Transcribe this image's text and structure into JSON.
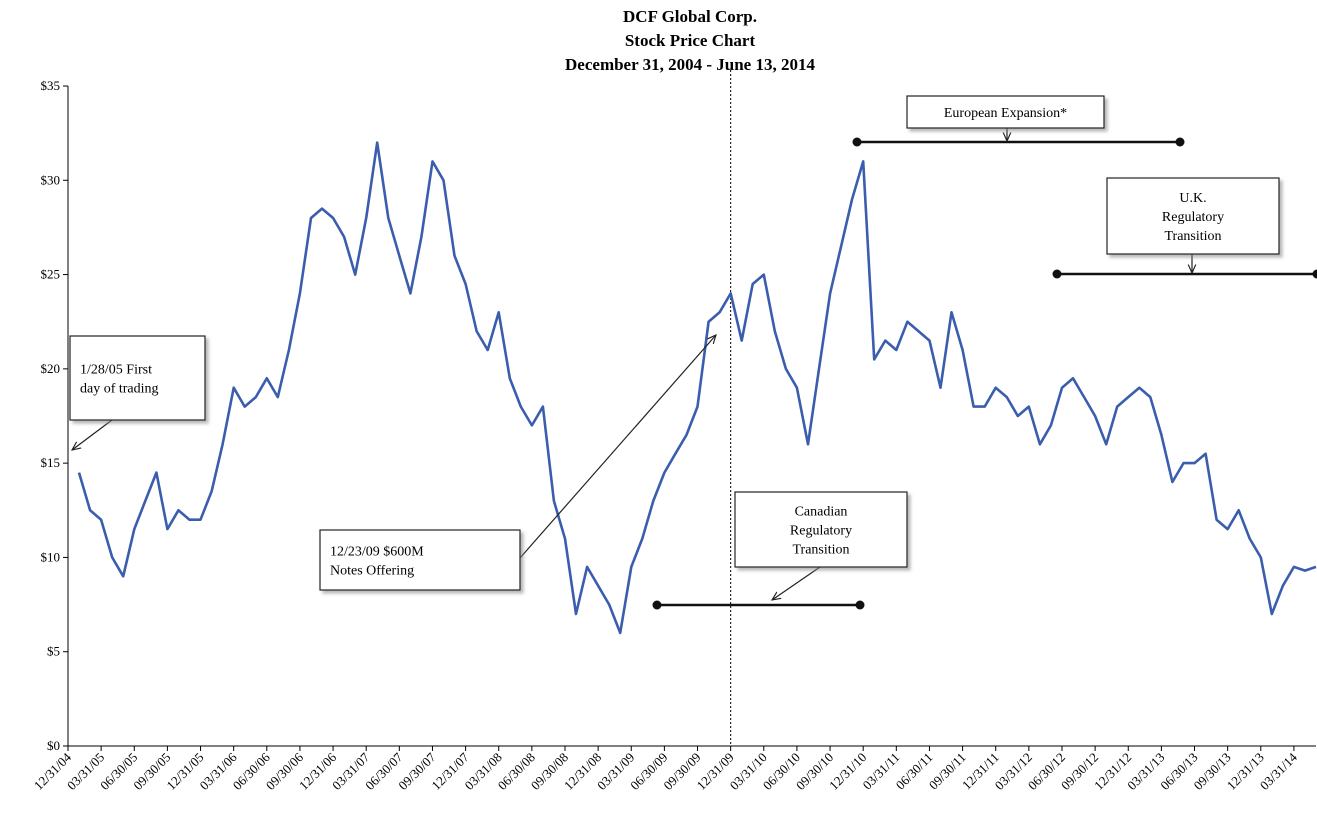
{
  "chart_data": {
    "type": "line",
    "title": [
      "DCF Global Corp.",
      "Stock Price Chart",
      "December 31, 2004 - June 13, 2014"
    ],
    "categories": [
      "12/31/04",
      null,
      null,
      "03/31/05",
      null,
      null,
      "06/30/05",
      null,
      null,
      "09/30/05",
      null,
      null,
      "12/31/05",
      null,
      null,
      "03/31/06",
      null,
      null,
      "06/30/06",
      null,
      null,
      "09/30/06",
      null,
      null,
      "12/31/06",
      null,
      null,
      "03/31/07",
      null,
      null,
      "06/30/07",
      null,
      null,
      "09/30/07",
      null,
      null,
      "12/31/07",
      null,
      null,
      "03/31/08",
      null,
      null,
      "06/30/08",
      null,
      null,
      "09/30/08",
      null,
      null,
      "12/31/08",
      null,
      null,
      "03/31/09",
      null,
      null,
      "06/30/09",
      null,
      null,
      "09/30/09",
      null,
      null,
      "12/31/09",
      null,
      null,
      "03/31/10",
      null,
      null,
      "06/30/10",
      null,
      null,
      "09/30/10",
      null,
      null,
      "12/31/10",
      null,
      null,
      "03/31/11",
      null,
      null,
      "06/30/11",
      null,
      null,
      "09/30/11",
      null,
      null,
      "12/31/11",
      null,
      null,
      "03/31/12",
      null,
      null,
      "06/30/12",
      null,
      null,
      "09/30/12",
      null,
      null,
      "12/31/12",
      null,
      null,
      "03/31/13",
      null,
      null,
      "06/30/13",
      null,
      null,
      "09/30/13",
      null,
      null,
      "12/31/13",
      null,
      null,
      "03/31/14",
      null,
      null
    ],
    "series": [
      {
        "name": "Stock Price",
        "color": "#3a5dae",
        "values": [
          null,
          14.5,
          12.5,
          12,
          10,
          9,
          11.5,
          13,
          14.5,
          11.5,
          12.5,
          12,
          12,
          13.5,
          16,
          19,
          18,
          18.5,
          19.5,
          18.5,
          21,
          24,
          28,
          28.5,
          28,
          27,
          25,
          28,
          32,
          28,
          26,
          24,
          27,
          31,
          30,
          26,
          24.5,
          22,
          21,
          23,
          19.5,
          18,
          17,
          18,
          13,
          11,
          7,
          9.5,
          8.5,
          7.5,
          6,
          9.5,
          11,
          13,
          14.5,
          15.5,
          16.5,
          18,
          22.5,
          23,
          24,
          21.5,
          24.5,
          25,
          22,
          20,
          19,
          16,
          20,
          24,
          26.5,
          29,
          31,
          20.5,
          21.5,
          21,
          22.5,
          22,
          21.5,
          19,
          23,
          21,
          18,
          18,
          19,
          18.5,
          17.5,
          18,
          16,
          17,
          19,
          19.5,
          18.5,
          17.5,
          16,
          18,
          18.5,
          19,
          18.5,
          16.5,
          14,
          15,
          15,
          15.5,
          12,
          11.5,
          12.5,
          11,
          10,
          7,
          8.5,
          9.5,
          9.3,
          9.5
        ]
      }
    ],
    "ylim": [
      0,
      35
    ],
    "yticks": [
      {
        "value": 0,
        "label": "$0"
      },
      {
        "value": 5,
        "label": "$5"
      },
      {
        "value": 10,
        "label": "$10"
      },
      {
        "value": 15,
        "label": "$15"
      },
      {
        "value": 20,
        "label": "$20"
      },
      {
        "value": 25,
        "label": "$25"
      },
      {
        "value": 30,
        "label": "$30"
      },
      {
        "value": 35,
        "label": "$35"
      }
    ],
    "grid": false,
    "annotations": [
      {
        "lines": [
          "1/28/05 First",
          "day of trading"
        ]
      },
      {
        "lines": [
          "12/23/09 $600M",
          "Notes Offering"
        ]
      },
      {
        "lines": [
          "Canadian",
          "Regulatory",
          "Transition"
        ]
      },
      {
        "lines": [
          "European Expansion*"
        ]
      },
      {
        "lines": [
          "U.K.",
          "Regulatory",
          "Transition"
        ]
      }
    ]
  }
}
